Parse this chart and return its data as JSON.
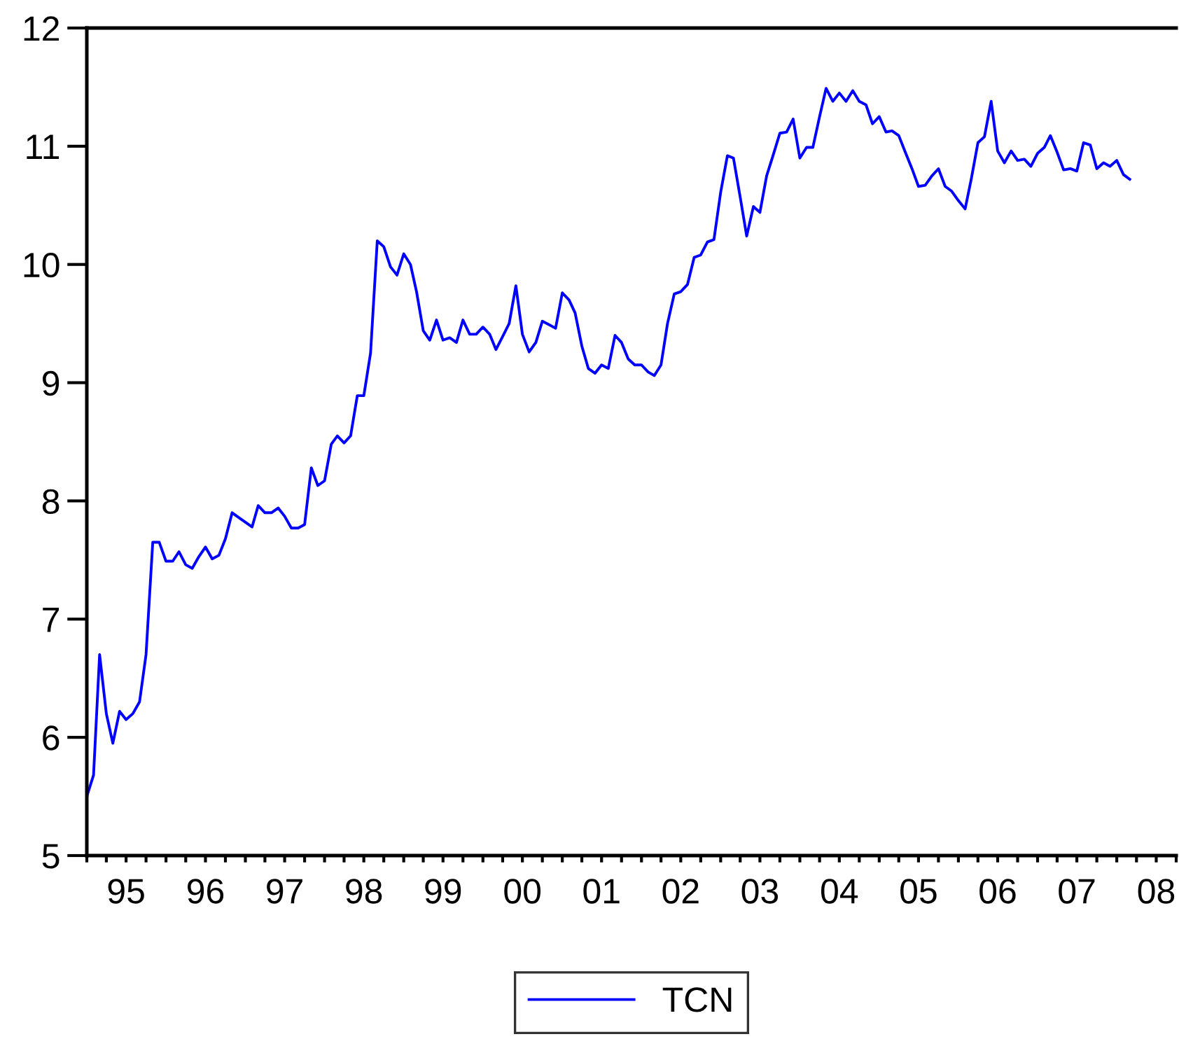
{
  "chart_data": {
    "type": "line",
    "x": [
      "1995-01",
      "1995-02",
      "1995-03",
      "1995-04",
      "1995-05",
      "1995-06",
      "1995-07",
      "1995-08",
      "1995-09",
      "1995-10",
      "1995-11",
      "1995-12",
      "1996-01",
      "1996-02",
      "1996-03",
      "1996-04",
      "1996-05",
      "1996-06",
      "1996-07",
      "1996-08",
      "1996-09",
      "1996-10",
      "1996-11",
      "1996-12",
      "1997-01",
      "1997-02",
      "1997-03",
      "1997-04",
      "1997-05",
      "1997-06",
      "1997-07",
      "1997-08",
      "1997-09",
      "1997-10",
      "1997-11",
      "1997-12",
      "1998-01",
      "1998-02",
      "1998-03",
      "1998-04",
      "1998-05",
      "1998-06",
      "1998-07",
      "1998-08",
      "1998-09",
      "1998-10",
      "1998-11",
      "1998-12",
      "1999-01",
      "1999-02",
      "1999-03",
      "1999-04",
      "1999-05",
      "1999-06",
      "1999-07",
      "1999-08",
      "1999-09",
      "1999-10",
      "1999-11",
      "1999-12",
      "2000-01",
      "2000-02",
      "2000-03",
      "2000-04",
      "2000-05",
      "2000-06",
      "2000-07",
      "2000-08",
      "2000-09",
      "2000-10",
      "2000-11",
      "2000-12",
      "2001-01",
      "2001-02",
      "2001-03",
      "2001-04",
      "2001-05",
      "2001-06",
      "2001-07",
      "2001-08",
      "2001-09",
      "2001-10",
      "2001-11",
      "2001-12",
      "2002-01",
      "2002-02",
      "2002-03",
      "2002-04",
      "2002-05",
      "2002-06",
      "2002-07",
      "2002-08",
      "2002-09",
      "2002-10",
      "2002-11",
      "2002-12",
      "2003-01",
      "2003-02",
      "2003-03",
      "2003-04",
      "2003-05",
      "2003-06",
      "2003-07",
      "2003-08",
      "2003-09",
      "2003-10",
      "2003-11",
      "2003-12",
      "2004-01",
      "2004-02",
      "2004-03",
      "2004-04",
      "2004-05",
      "2004-06",
      "2004-07",
      "2004-08",
      "2004-09",
      "2004-10",
      "2004-11",
      "2004-12",
      "2005-01",
      "2005-02",
      "2005-03",
      "2005-04",
      "2005-05",
      "2005-06",
      "2005-07",
      "2005-08",
      "2005-09",
      "2005-10",
      "2005-11",
      "2005-12",
      "2006-01",
      "2006-02",
      "2006-03",
      "2006-04",
      "2006-05",
      "2006-06",
      "2006-07",
      "2006-08",
      "2006-09",
      "2006-10",
      "2006-11",
      "2006-12",
      "2007-01",
      "2007-02",
      "2007-03",
      "2007-04",
      "2007-05",
      "2007-06",
      "2007-07",
      "2007-08",
      "2007-09",
      "2007-10",
      "2007-11",
      "2007-12",
      "2008-01",
      "2008-02",
      "2008-03"
    ],
    "series": [
      {
        "name": "TCN",
        "color": "#0000ff",
        "values": [
          5.5,
          5.68,
          6.7,
          6.2,
          5.95,
          6.22,
          6.15,
          6.2,
          6.3,
          6.7,
          7.65,
          7.65,
          7.49,
          7.49,
          7.57,
          7.46,
          7.43,
          7.53,
          7.61,
          7.51,
          7.54,
          7.68,
          7.9,
          7.86,
          7.82,
          7.78,
          7.96,
          7.9,
          7.9,
          7.94,
          7.87,
          7.77,
          7.77,
          7.8,
          8.28,
          8.13,
          8.17,
          8.48,
          8.55,
          8.49,
          8.55,
          8.89,
          8.89,
          9.25,
          10.2,
          10.15,
          9.98,
          9.91,
          10.09,
          10.0,
          9.77,
          9.44,
          9.36,
          9.53,
          9.36,
          9.38,
          9.34,
          9.53,
          9.41,
          9.41,
          9.47,
          9.41,
          9.28,
          9.39,
          9.5,
          9.82,
          9.41,
          9.26,
          9.34,
          9.52,
          9.49,
          9.46,
          9.76,
          9.7,
          9.59,
          9.31,
          9.12,
          9.08,
          9.15,
          9.12,
          9.4,
          9.34,
          9.2,
          9.15,
          9.15,
          9.09,
          9.06,
          9.15,
          9.5,
          9.75,
          9.77,
          9.83,
          10.06,
          10.08,
          10.19,
          10.21,
          10.61,
          10.92,
          10.9,
          10.57,
          10.24,
          10.49,
          10.44,
          10.75,
          10.93,
          11.11,
          11.12,
          11.23,
          10.9,
          10.99,
          10.99,
          11.25,
          11.49,
          11.38,
          11.45,
          11.38,
          11.47,
          11.38,
          11.35,
          11.19,
          11.25,
          11.12,
          11.13,
          11.09,
          10.95,
          10.81,
          10.66,
          10.67,
          10.75,
          10.81,
          10.66,
          10.62,
          10.54,
          10.47,
          10.72,
          11.03,
          11.08,
          11.38,
          10.96,
          10.86,
          10.96,
          10.88,
          10.89,
          10.83,
          10.94,
          10.99,
          11.09,
          10.95,
          10.8,
          10.81,
          10.79,
          11.03,
          11.01,
          10.81,
          10.86,
          10.83,
          10.88,
          10.76,
          10.72
        ]
      }
    ],
    "xlim": [
      "1995-01",
      "2008-10"
    ],
    "xticks": [
      {
        "value": "1995-01",
        "label": null
      },
      {
        "value": "1995-04",
        "label": null
      },
      {
        "value": "1995-07",
        "label": "95"
      },
      {
        "value": "1995-10",
        "label": null
      },
      {
        "value": "1996-01",
        "label": null
      },
      {
        "value": "1996-04",
        "label": null
      },
      {
        "value": "1996-07",
        "label": "96"
      },
      {
        "value": "1996-10",
        "label": null
      },
      {
        "value": "1997-01",
        "label": null
      },
      {
        "value": "1997-04",
        "label": null
      },
      {
        "value": "1997-07",
        "label": "97"
      },
      {
        "value": "1997-10",
        "label": null
      },
      {
        "value": "1998-01",
        "label": null
      },
      {
        "value": "1998-04",
        "label": null
      },
      {
        "value": "1998-07",
        "label": "98"
      },
      {
        "value": "1998-10",
        "label": null
      },
      {
        "value": "1999-01",
        "label": null
      },
      {
        "value": "1999-04",
        "label": null
      },
      {
        "value": "1999-07",
        "label": "99"
      },
      {
        "value": "1999-10",
        "label": null
      },
      {
        "value": "2000-01",
        "label": null
      },
      {
        "value": "2000-04",
        "label": null
      },
      {
        "value": "2000-07",
        "label": "00"
      },
      {
        "value": "2000-10",
        "label": null
      },
      {
        "value": "2001-01",
        "label": null
      },
      {
        "value": "2001-04",
        "label": null
      },
      {
        "value": "2001-07",
        "label": "01"
      },
      {
        "value": "2001-10",
        "label": null
      },
      {
        "value": "2002-01",
        "label": null
      },
      {
        "value": "2002-04",
        "label": null
      },
      {
        "value": "2002-07",
        "label": "02"
      },
      {
        "value": "2002-10",
        "label": null
      },
      {
        "value": "2003-01",
        "label": null
      },
      {
        "value": "2003-04",
        "label": null
      },
      {
        "value": "2003-07",
        "label": "03"
      },
      {
        "value": "2003-10",
        "label": null
      },
      {
        "value": "2004-01",
        "label": null
      },
      {
        "value": "2004-04",
        "label": null
      },
      {
        "value": "2004-07",
        "label": "04"
      },
      {
        "value": "2004-10",
        "label": null
      },
      {
        "value": "2005-01",
        "label": null
      },
      {
        "value": "2005-04",
        "label": null
      },
      {
        "value": "2005-07",
        "label": "05"
      },
      {
        "value": "2005-10",
        "label": null
      },
      {
        "value": "2006-01",
        "label": null
      },
      {
        "value": "2006-04",
        "label": null
      },
      {
        "value": "2006-07",
        "label": "06"
      },
      {
        "value": "2006-10",
        "label": null
      },
      {
        "value": "2007-01",
        "label": null
      },
      {
        "value": "2007-04",
        "label": null
      },
      {
        "value": "2007-07",
        "label": "07"
      },
      {
        "value": "2007-10",
        "label": null
      },
      {
        "value": "2008-01",
        "label": null
      },
      {
        "value": "2008-04",
        "label": null
      },
      {
        "value": "2008-07",
        "label": "08"
      },
      {
        "value": "2008-10",
        "label": null
      }
    ],
    "ylim": [
      5,
      12
    ],
    "yticks": [
      5,
      6,
      7,
      8,
      9,
      10,
      11,
      12
    ],
    "grid": false,
    "legend": "bottom",
    "marker": "none",
    "line_style": "solid"
  }
}
